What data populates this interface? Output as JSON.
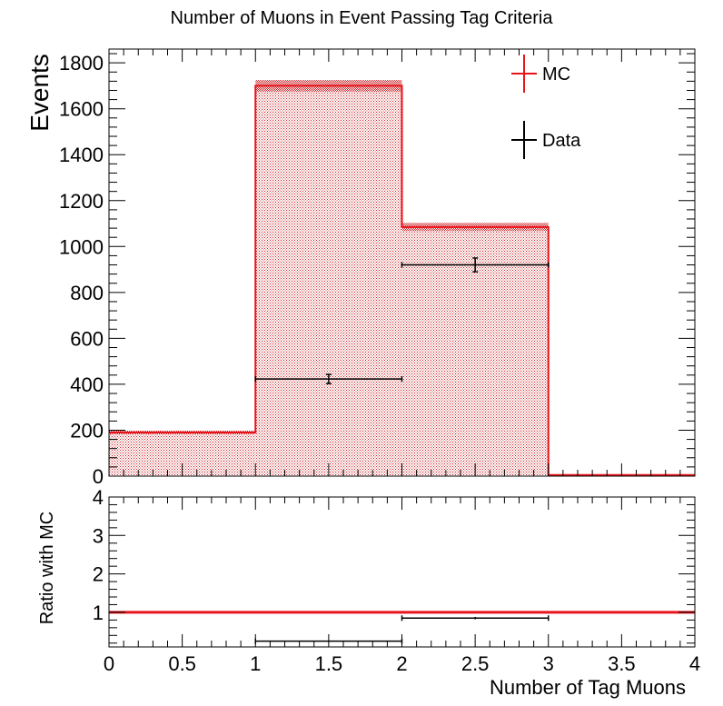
{
  "title": "Number of Muons in Event Passing Tag Criteria",
  "colors": {
    "mc": "#e8131a",
    "mc_fill": "#c81e23",
    "data": "#000000",
    "frame": "#000000",
    "background": "#ffffff"
  },
  "chart_data": [
    {
      "type": "bar",
      "panel": "main",
      "title": "Number of Muons in Event Passing Tag Criteria",
      "ylabel": "Events",
      "xlim": [
        0,
        4
      ],
      "ylim": [
        0,
        1860
      ],
      "yticks": [
        0,
        200,
        400,
        600,
        800,
        1000,
        1200,
        1400,
        1600,
        1800
      ],
      "ytick_labels": [
        "0",
        "200",
        "400",
        "600",
        "800",
        "1000",
        "1200",
        "1400",
        "1600",
        "1800"
      ],
      "legend_position": "top-right",
      "legend": [
        {
          "label": "MC",
          "style": "cross",
          "color": "#e8131a"
        },
        {
          "label": "Data",
          "style": "cross",
          "color": "#000000"
        }
      ],
      "series": [
        {
          "name": "MC",
          "kind": "histogram",
          "bin_edges": [
            0,
            1,
            2,
            3,
            4
          ],
          "values": [
            190,
            1700,
            1085,
            5
          ],
          "errors": [
            8,
            25,
            18,
            1
          ]
        },
        {
          "name": "Data",
          "kind": "points",
          "x": [
            1.5,
            2.5
          ],
          "xerr": [
            0.5,
            0.5
          ],
          "y": [
            423,
            920
          ],
          "yerr": [
            20,
            30
          ]
        }
      ]
    },
    {
      "type": "line",
      "panel": "ratio",
      "xlabel": "Number of Tag Muons",
      "ylabel": "Ratio with MC",
      "xlim": [
        0,
        4
      ],
      "ylim": [
        0.1,
        4
      ],
      "xticks": [
        0,
        0.5,
        1,
        1.5,
        2,
        2.5,
        3,
        3.5,
        4
      ],
      "xtick_labels": [
        "0",
        "0.5",
        "1",
        "1.5",
        "2",
        "2.5",
        "3",
        "3.5",
        "4"
      ],
      "yticks": [
        1,
        2,
        3,
        4
      ],
      "ytick_labels": [
        "1",
        "2",
        "3",
        "4"
      ],
      "series": [
        {
          "name": "MC",
          "kind": "reference-line",
          "y": 1
        },
        {
          "name": "Data",
          "kind": "points",
          "x": [
            1.5,
            2.5
          ],
          "xerr": [
            0.5,
            0.5
          ],
          "y": [
            0.25,
            0.85
          ],
          "yerr": [
            0.02,
            0.03
          ]
        }
      ]
    }
  ]
}
